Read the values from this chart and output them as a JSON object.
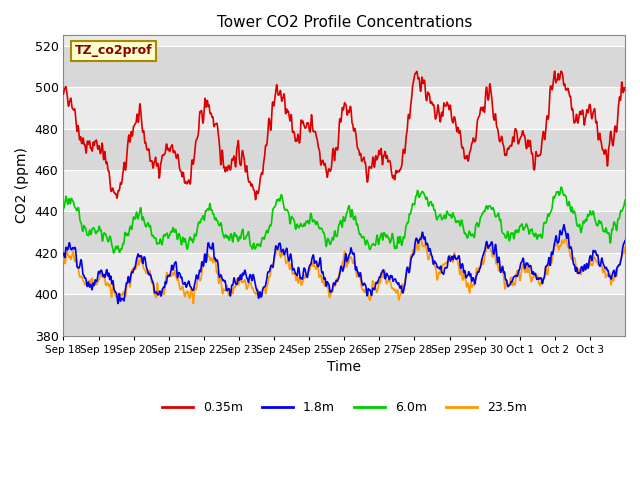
{
  "title": "Tower CO2 Profile Concentrations",
  "xlabel": "Time",
  "ylabel": "CO2 (ppm)",
  "ylim": [
    380,
    525
  ],
  "yticks": [
    380,
    400,
    420,
    440,
    460,
    480,
    500,
    520
  ],
  "annotation": "TZ_co2prof",
  "bg_color": "#ffffff",
  "plot_bg_light": "#ebebeb",
  "plot_bg_dark": "#d8d8d8",
  "lines": {
    "0.35m": {
      "color": "#dd0000",
      "lw": 1.2
    },
    "1.8m": {
      "color": "#0000ee",
      "lw": 1.2
    },
    "6.0m": {
      "color": "#00cc00",
      "lw": 1.2
    },
    "23.5m": {
      "color": "#ff9900",
      "lw": 1.2
    }
  },
  "legend_labels": [
    "0.35m",
    "1.8m",
    "6.0m",
    "23.5m"
  ],
  "legend_colors": [
    "#dd0000",
    "#0000ee",
    "#00cc00",
    "#ff9900"
  ],
  "xtick_labels": [
    "Sep 18",
    "Sep 19",
    "Sep 20",
    "Sep 21",
    "Sep 22",
    "Sep 23",
    "Sep 24",
    "Sep 25",
    "Sep 26",
    "Sep 27",
    "Sep 28",
    "Sep 29",
    "Sep 30",
    "Oct 1",
    "Oct 2",
    "Oct 3"
  ],
  "n_days": 16,
  "ppd": 96,
  "seed": 42
}
